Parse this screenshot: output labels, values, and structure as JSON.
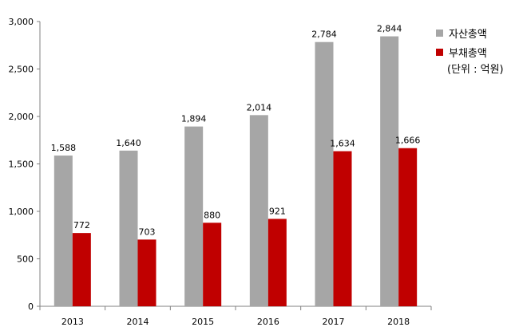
{
  "chart_data": {
    "type": "bar",
    "categories": [
      "2013",
      "2014",
      "2015",
      "2016",
      "2017",
      "2018"
    ],
    "series": [
      {
        "name": "자산총액",
        "color": "#a6a6a6",
        "values": [
          1588,
          1640,
          1894,
          2014,
          2784,
          2844
        ],
        "labels": [
          "1,588",
          "1,640",
          "1,894",
          "2,014",
          "2,784",
          "2,844"
        ]
      },
      {
        "name": "부채총액",
        "color": "#c00000",
        "values": [
          772,
          703,
          880,
          921,
          1634,
          1666
        ],
        "labels": [
          "772",
          "703",
          "880",
          "921",
          "1,634",
          "1,666"
        ]
      }
    ],
    "ylim": [
      0,
      3000
    ],
    "yticks": [
      0,
      500,
      1000,
      1500,
      2000,
      2500,
      3000
    ],
    "ytick_labels": [
      "0",
      "500",
      "1,000",
      "1,500",
      "2,000",
      "2,500",
      "3,000"
    ],
    "grid": false,
    "legend_position": "right",
    "unit_note": "(단위 : 억원)"
  }
}
